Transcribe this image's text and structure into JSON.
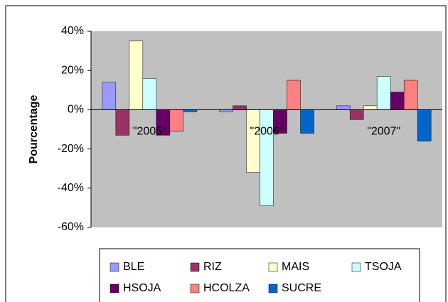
{
  "chart_data": {
    "type": "bar",
    "y_label": "Pourcentage",
    "categories": [
      "\"2005\"",
      "\"2006\"",
      "\"2007\""
    ],
    "series": [
      {
        "name": "BLE",
        "color": "#9999ff",
        "values": [
          14,
          -1,
          2
        ]
      },
      {
        "name": "RIZ",
        "color": "#993366",
        "values": [
          -13,
          2,
          -5
        ]
      },
      {
        "name": "MAIS",
        "color": "#ffffcc",
        "values": [
          35,
          -32,
          2
        ]
      },
      {
        "name": "TSOJA",
        "color": "#ccffff",
        "values": [
          16,
          -49,
          17
        ]
      },
      {
        "name": "HSOJA",
        "color": "#660066",
        "values": [
          -13,
          -12,
          9
        ]
      },
      {
        "name": "HCOLZA",
        "color": "#ff8080",
        "values": [
          -11,
          15,
          15
        ]
      },
      {
        "name": "SUCRE",
        "color": "#0066cc",
        "values": [
          -1,
          -12,
          -16
        ]
      }
    ],
    "ylim": [
      -60,
      40
    ],
    "yticks": [
      {
        "value": -60,
        "label": "-60%"
      },
      {
        "value": -40,
        "label": "-40%"
      },
      {
        "value": -20,
        "label": "-20%"
      },
      {
        "value": 0,
        "label": "0%"
      },
      {
        "value": 20,
        "label": "20%"
      },
      {
        "value": 40,
        "label": "40%"
      }
    ],
    "grid": false
  }
}
